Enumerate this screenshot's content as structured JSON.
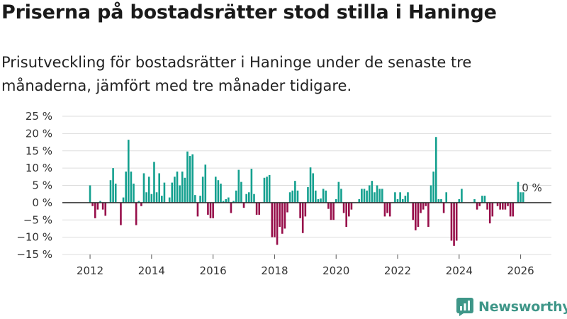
{
  "title": "Priserna på bostadsrätter stod stilla i Haninge",
  "subtitle": "Prisutveckling för bostadsrätter i Haninge under de senaste tre månaderna, jämfört med tre månader tidigare.",
  "brand": {
    "name": "Newsworthy",
    "icon": "bar-chart-logo-icon",
    "color": "#3e9688"
  },
  "colors": {
    "positive": "#14a08f",
    "negative": "#970e4a",
    "grid": "#dddddd",
    "zero": "#333333",
    "text": "#333333"
  },
  "chart_data": {
    "type": "bar",
    "title": "Priserna på bostadsrätter stod stilla i Haninge",
    "xlabel": "",
    "ylabel": "",
    "start": {
      "year": 2012,
      "month": 1
    },
    "xlim": [
      2011.1,
      2027.0
    ],
    "ylim": [
      -15,
      25
    ],
    "yticks": [
      -15,
      -10,
      -5,
      0,
      5,
      10,
      15,
      20,
      25
    ],
    "ytick_labels": [
      "−15 %",
      "−10 %",
      "−5 %",
      "0 %",
      "5 %",
      "10 %",
      "15 %",
      "20 %",
      "25 %"
    ],
    "xticks": [
      2012,
      2014,
      2016,
      2018,
      2020,
      2022,
      2024,
      2026
    ],
    "xtick_labels": [
      "2012",
      "2014",
      "2016",
      "2018",
      "2020",
      "2022",
      "2024",
      "2026"
    ],
    "grid": true,
    "last_label": "0 %",
    "values": [
      5,
      -1,
      -4.5,
      -2,
      0.5,
      -2,
      -3.8,
      0,
      6.5,
      10,
      5.5,
      0,
      -6.5,
      1.5,
      9,
      18.2,
      9,
      5.5,
      -6.5,
      0.5,
      -1,
      8.5,
      3,
      7.5,
      2.5,
      11.8,
      3,
      8.5,
      2,
      5.8,
      0,
      1.5,
      5.8,
      7.5,
      9,
      5,
      9,
      7.2,
      14.8,
      13.5,
      14,
      2.2,
      -4,
      2,
      7.5,
      11,
      -3.5,
      -4.5,
      -4.5,
      7.5,
      6.5,
      5.5,
      0.5,
      1,
      1.5,
      -3,
      0.5,
      3.5,
      9.5,
      6,
      -1.5,
      2.5,
      3,
      9.8,
      2.5,
      -3.5,
      -3.5,
      0,
      7.2,
      7.5,
      8,
      -10,
      -10,
      -12.2,
      -7,
      -9,
      -7.5,
      -2.8,
      3,
      3.5,
      6.3,
      3.5,
      -4.5,
      -8.8,
      -4,
      4.5,
      10.2,
      8.5,
      3.5,
      1,
      1.2,
      4,
      3.5,
      -1.8,
      -5,
      -5,
      1,
      6,
      4,
      -3,
      -7,
      -4,
      -2,
      0,
      0,
      1,
      4,
      4,
      3.5,
      5,
      6.3,
      3,
      5,
      4,
      4,
      -4,
      -3,
      -4,
      0,
      3,
      1,
      3,
      1,
      2,
      3,
      0,
      -5,
      -8,
      -7,
      -3,
      -2,
      -1,
      -7,
      5,
      9,
      19,
      1,
      1,
      -3,
      3,
      0,
      -11,
      -12.5,
      -11,
      1,
      4,
      0,
      0,
      0,
      0,
      1,
      -2,
      -1,
      2,
      2,
      -2,
      -6,
      -4,
      0,
      -1,
      -2,
      -2,
      -2,
      -1,
      -4,
      -4,
      0,
      6,
      3,
      3
    ]
  }
}
